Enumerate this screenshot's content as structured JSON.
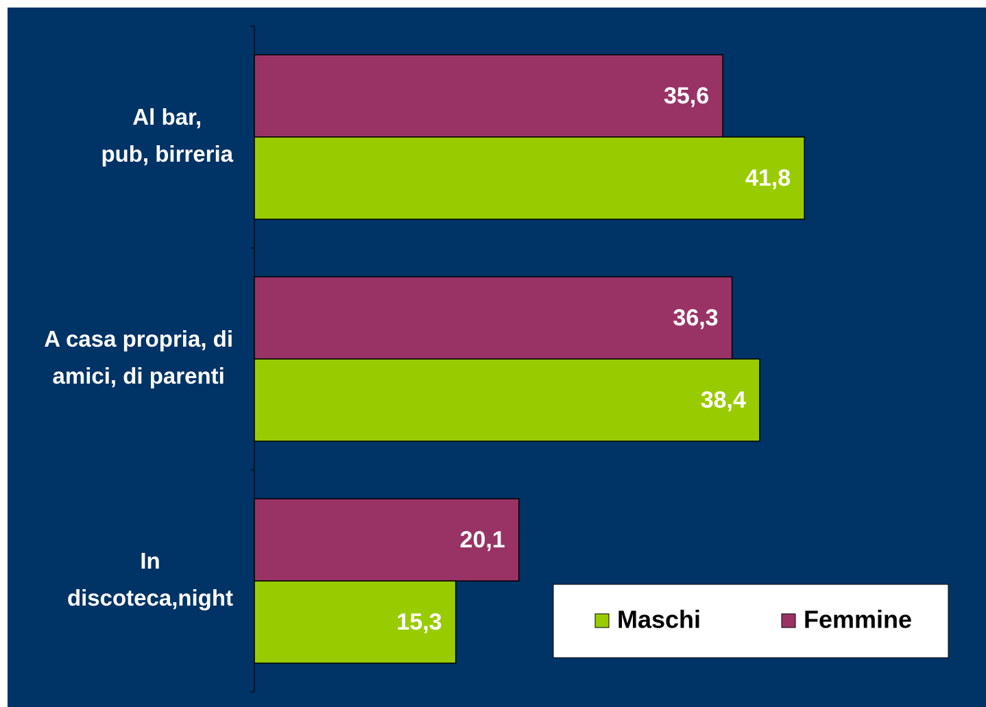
{
  "chart_data": {
    "type": "barh",
    "categories": [
      "Al bar,\npub, birreria",
      "A casa propria, di\namici, di parenti",
      "In\ndiscoteca,night"
    ],
    "series": [
      {
        "name": "Maschi",
        "color": "#99cc00",
        "values": [
          41.8,
          38.4,
          15.3
        ],
        "value_labels": [
          "41,8",
          "38,4",
          "15,3"
        ]
      },
      {
        "name": "Femmine",
        "color": "#993366",
        "values": [
          35.6,
          36.3,
          20.1
        ],
        "value_labels": [
          "35,6",
          "36,3",
          "20,1"
        ]
      }
    ]
  }
}
